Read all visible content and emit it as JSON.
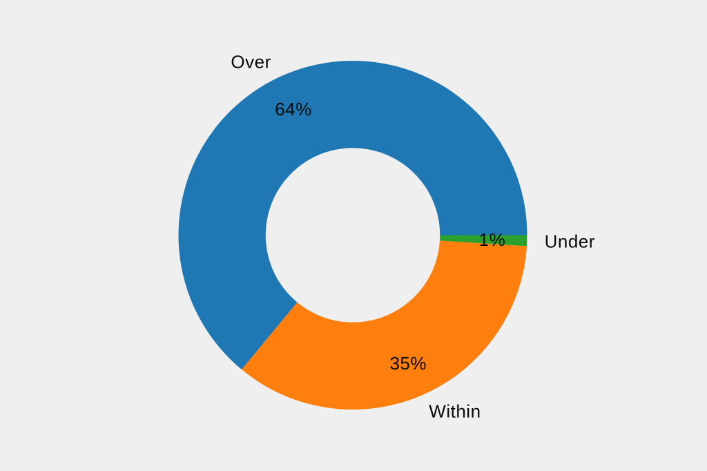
{
  "page": {
    "background_color": "#efefef"
  },
  "chart_data": {
    "type": "pie",
    "subtype": "donut",
    "title": "",
    "categories": [
      "Over",
      "Within",
      "Under"
    ],
    "values": [
      64,
      35,
      1
    ],
    "percent_labels": [
      "64%",
      "35%",
      "1%"
    ],
    "colors": [
      "#1f77b4",
      "#ff7f0e",
      "#2ca02c"
    ],
    "text_color": "#0a0a0a",
    "start_angle_deg": 0,
    "direction": "counterclockwise",
    "inner_radius_ratio": 0.5,
    "label_distance_ratio": 1.1,
    "percent_distance_ratio": 0.8,
    "legend": "none",
    "grid": "off"
  }
}
